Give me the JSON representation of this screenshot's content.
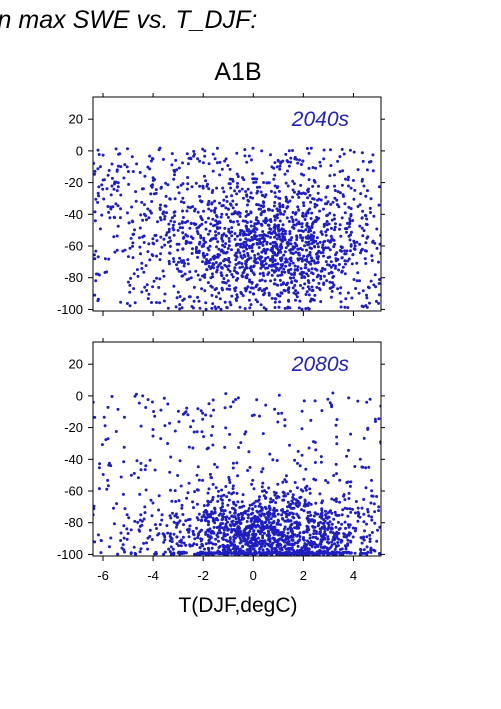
{
  "page_title": "in max SWE vs. T_DJF:",
  "scenario": "A1B",
  "xlabel": "T(DJF,degC)",
  "colors": {
    "points": "#1f1fbf",
    "label": "#2323b4"
  },
  "chart_data": [
    {
      "type": "scatter",
      "panel_label": "2040s",
      "xlim": [
        -6.4,
        5.1
      ],
      "ylim": [
        -101,
        34
      ],
      "xticks": [
        -6,
        -4,
        -2,
        0,
        2,
        4
      ],
      "xtick_labels": [],
      "yticks": [
        20,
        0,
        -20,
        -40,
        -60,
        -80,
        -100
      ],
      "ytick_labels": [
        "20",
        "0",
        "-20",
        "-40",
        "-60",
        "-80",
        "-100"
      ],
      "grid": false,
      "distribution": {
        "n": 1800,
        "center_x": 0.6,
        "center_y": -60,
        "sd_x": 2.1,
        "sd_y": 20,
        "cluster_frac": 0.6
      }
    },
    {
      "type": "scatter",
      "panel_label": "2080s",
      "xlim": [
        -6.4,
        5.1
      ],
      "ylim": [
        -101,
        34
      ],
      "xticks": [
        -6,
        -4,
        -2,
        0,
        2,
        4
      ],
      "xtick_labels": [
        "-6",
        "-4",
        "-2",
        "0",
        "2",
        "4"
      ],
      "yticks": [
        20,
        0,
        -20,
        -40,
        -60,
        -80,
        -100
      ],
      "ytick_labels": [
        "20",
        "0",
        "-20",
        "-40",
        "-60",
        "-80",
        "-100"
      ],
      "grid": false,
      "distribution": {
        "n": 1800,
        "center_x": 0.6,
        "center_y": -88,
        "sd_x": 2.1,
        "sd_y": 14,
        "cluster_frac": 0.75
      }
    }
  ]
}
